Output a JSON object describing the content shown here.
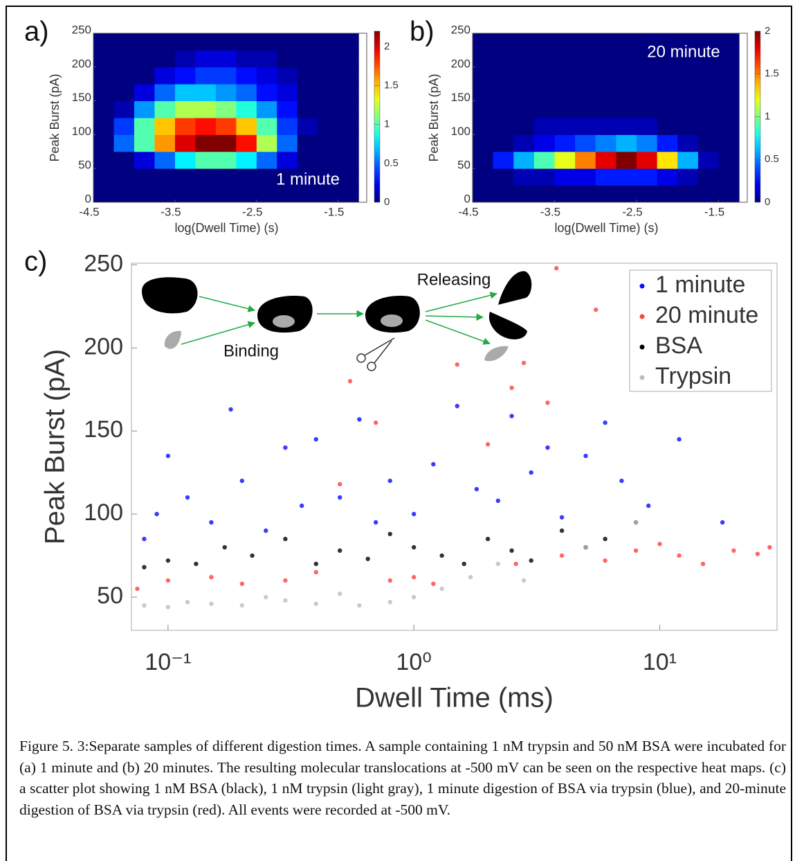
{
  "chart_data": [
    {
      "type": "heatmap",
      "label": "a)",
      "annotation": "1 minute",
      "xlabel": "log(Dwell Time) (s)",
      "ylabel": "Peak Burst (pA)",
      "xlim": [
        -4.5,
        -1.15
      ],
      "ylim": [
        0,
        250
      ],
      "xticks": [
        -4.5,
        -3.5,
        -2.5,
        -1.5
      ],
      "yticks": [
        0,
        50,
        100,
        150,
        200,
        250
      ],
      "colormap": "jet",
      "clim": [
        0,
        2.2
      ],
      "cticks": [
        0,
        0.5,
        1,
        1.5,
        2
      ],
      "x_bins": [
        -4.5,
        -4.25,
        -4,
        -3.75,
        -3.5,
        -3.25,
        -3,
        -2.75,
        -2.5,
        -2.25,
        -2,
        -1.75,
        -1.5,
        -1.25
      ],
      "y_bins": [
        0,
        25,
        50,
        75,
        100,
        125,
        150,
        175,
        200,
        225,
        250
      ],
      "z": [
        [
          0,
          0,
          0,
          0,
          0,
          0,
          0,
          0,
          0,
          0,
          0,
          0,
          0
        ],
        [
          0,
          0,
          0,
          0,
          0,
          0,
          0,
          0,
          0,
          0,
          0,
          0,
          0
        ],
        [
          0,
          0,
          0.2,
          0.5,
          0.8,
          1.0,
          1.0,
          0.8,
          0.5,
          0.2,
          0,
          0,
          0
        ],
        [
          0,
          0.5,
          1.0,
          1.6,
          2.0,
          2.2,
          2.2,
          1.9,
          1.2,
          0.5,
          0,
          0,
          0
        ],
        [
          0,
          0.4,
          1.0,
          1.5,
          1.8,
          1.9,
          1.8,
          1.5,
          1.0,
          0.4,
          0.1,
          0,
          0
        ],
        [
          0,
          0.1,
          0.6,
          1.0,
          1.2,
          1.2,
          1.1,
          0.9,
          0.6,
          0.3,
          0,
          0,
          0
        ],
        [
          0,
          0,
          0.2,
          0.5,
          0.7,
          0.7,
          0.6,
          0.5,
          0.3,
          0.2,
          0,
          0,
          0
        ],
        [
          0,
          0,
          0,
          0.2,
          0.3,
          0.4,
          0.4,
          0.3,
          0.2,
          0.1,
          0,
          0,
          0
        ],
        [
          0,
          0,
          0,
          0,
          0.1,
          0.2,
          0.2,
          0.1,
          0.1,
          0,
          0,
          0,
          0
        ],
        [
          0,
          0,
          0,
          0,
          0,
          0,
          0,
          0,
          0,
          0,
          0,
          0,
          0
        ]
      ]
    },
    {
      "type": "heatmap",
      "label": "b)",
      "annotation": "20 minute",
      "xlabel": "log(Dwell Time) (s)",
      "ylabel": "Peak Burst (pA)",
      "xlim": [
        -4.5,
        -1.15
      ],
      "ylim": [
        0,
        250
      ],
      "xticks": [
        -4.5,
        -3.5,
        -2.5,
        -1.5
      ],
      "yticks": [
        0,
        50,
        100,
        150,
        200,
        250
      ],
      "colormap": "jet",
      "clim": [
        0,
        2
      ],
      "cticks": [
        0,
        0.5,
        1,
        1.5,
        2
      ],
      "x_bins": [
        -4.5,
        -4.25,
        -4,
        -3.75,
        -3.5,
        -3.25,
        -3,
        -2.75,
        -2.5,
        -2.25,
        -2,
        -1.75,
        -1.5,
        -1.25
      ],
      "y_bins": [
        0,
        25,
        50,
        75,
        100,
        125,
        150,
        175,
        200,
        225,
        250
      ],
      "z": [
        [
          0,
          0,
          0,
          0,
          0,
          0,
          0,
          0,
          0,
          0,
          0,
          0,
          0
        ],
        [
          0,
          0,
          0.1,
          0.1,
          0.2,
          0.2,
          0.3,
          0.3,
          0.3,
          0.2,
          0.1,
          0,
          0
        ],
        [
          0,
          0.3,
          0.6,
          0.9,
          1.2,
          1.5,
          1.8,
          2.0,
          1.8,
          1.3,
          0.6,
          0.1,
          0
        ],
        [
          0,
          0,
          0.1,
          0.2,
          0.3,
          0.4,
          0.5,
          0.6,
          0.5,
          0.3,
          0.1,
          0,
          0
        ],
        [
          0,
          0,
          0,
          0.1,
          0.1,
          0.1,
          0.1,
          0.1,
          0.1,
          0,
          0,
          0,
          0
        ],
        [
          0,
          0,
          0,
          0,
          0,
          0,
          0,
          0,
          0,
          0,
          0,
          0,
          0
        ],
        [
          0,
          0,
          0,
          0,
          0,
          0,
          0,
          0,
          0,
          0,
          0,
          0,
          0
        ],
        [
          0,
          0,
          0,
          0,
          0,
          0,
          0,
          0,
          0,
          0,
          0,
          0,
          0
        ],
        [
          0,
          0,
          0,
          0,
          0,
          0,
          0,
          0,
          0,
          0,
          0,
          0,
          0
        ],
        [
          0,
          0,
          0,
          0,
          0,
          0,
          0,
          0,
          0,
          0,
          0,
          0,
          0
        ]
      ]
    },
    {
      "type": "scatter",
      "label": "c)",
      "xlabel": "Dwell Time (ms)",
      "ylabel": "Peak Burst (pA)",
      "xscale": "log",
      "xlim": [
        0.071,
        30
      ],
      "ylim": [
        30,
        251
      ],
      "xticks": [
        {
          "value": 0.1,
          "label": "10⁻¹"
        },
        {
          "value": 1,
          "label": "10⁰"
        },
        {
          "value": 10,
          "label": "10¹"
        }
      ],
      "yticks": [
        50,
        100,
        150,
        200,
        250
      ],
      "legend": "upper right",
      "annotations": [
        "Binding",
        "Releasing"
      ],
      "series": [
        {
          "name": "1 minute",
          "color": "#0a0aff",
          "x": [
            0.08,
            0.09,
            0.1,
            0.12,
            0.15,
            0.18,
            0.2,
            0.25,
            0.3,
            0.35,
            0.4,
            0.5,
            0.6,
            0.7,
            0.8,
            1.0,
            1.2,
            1.5,
            1.8,
            2.2,
            2.5,
            3,
            3.5,
            4,
            5,
            6,
            7,
            9,
            12,
            18
          ],
          "values": [
            85,
            100,
            135,
            110,
            95,
            163,
            120,
            90,
            140,
            105,
            145,
            110,
            157,
            95,
            120,
            100,
            130,
            165,
            115,
            108,
            159,
            125,
            140,
            98,
            135,
            155,
            120,
            105,
            145,
            95
          ]
        },
        {
          "name": "20 minute",
          "color": "#ff4040",
          "x": [
            0.075,
            0.1,
            0.15,
            0.2,
            0.3,
            0.4,
            0.5,
            0.55,
            0.7,
            0.8,
            1.0,
            1.2,
            1.5,
            2,
            2.5,
            2.6,
            2.8,
            3.5,
            3.8,
            4,
            5,
            5.5,
            6,
            8,
            10,
            12,
            15,
            20,
            25,
            28
          ],
          "values": [
            55,
            60,
            62,
            58,
            60,
            65,
            118,
            180,
            155,
            60,
            62,
            58,
            190,
            142,
            176,
            70,
            191,
            167,
            248,
            75,
            80,
            223,
            72,
            78,
            82,
            75,
            70,
            78,
            76,
            80
          ]
        },
        {
          "name": "BSA",
          "color": "#000000",
          "x": [
            0.08,
            0.1,
            0.13,
            0.17,
            0.22,
            0.3,
            0.4,
            0.5,
            0.65,
            0.8,
            1.0,
            1.3,
            1.6,
            2,
            2.5,
            3,
            4,
            5,
            6,
            8
          ],
          "values": [
            68,
            72,
            70,
            80,
            75,
            85,
            70,
            78,
            73,
            88,
            80,
            75,
            70,
            85,
            78,
            72,
            90,
            80,
            85,
            95
          ]
        },
        {
          "name": "Trypsin",
          "color": "#bdbdbd",
          "x": [
            0.08,
            0.1,
            0.12,
            0.15,
            0.2,
            0.25,
            0.3,
            0.4,
            0.5,
            0.6,
            0.8,
            1.0,
            1.3,
            1.7,
            2.2,
            2.8,
            5,
            8
          ],
          "values": [
            45,
            44,
            47,
            46,
            45,
            50,
            48,
            46,
            52,
            45,
            47,
            50,
            55,
            62,
            70,
            60,
            80,
            95
          ]
        }
      ]
    }
  ],
  "caption": "Figure 5. 3:Separate samples of different digestion times. A sample containing 1 nM trypsin and 50 nM BSA were incubated for (a) 1 minute and (b) 20 minutes. The resulting molecular translocations at -500 mV can be seen on the respective heat maps. (c) a scatter plot showing 1 nM BSA (black), 1 nM trypsin (light gray), 1 minute digestion of BSA via trypsin (blue), and 20-minute digestion of BSA via trypsin (red). All events were recorded at -500 mV."
}
